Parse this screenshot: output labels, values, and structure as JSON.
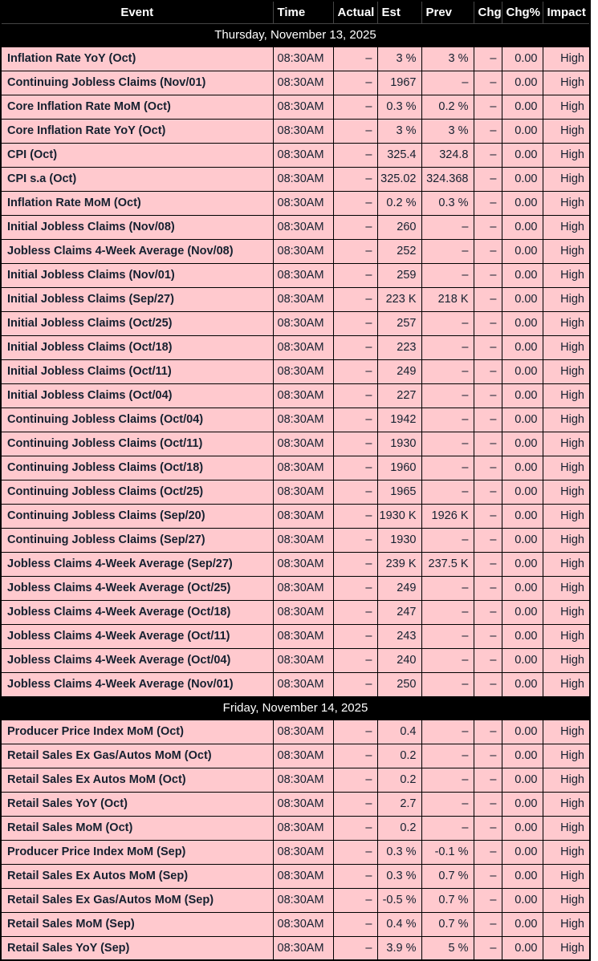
{
  "colors": {
    "header_bg": "#000000",
    "header_text": "#ffffff",
    "section_bg": "#000000",
    "section_text": "#ffffff",
    "row_bg": "#ffc9ce",
    "row_text": "#15202f",
    "border": "#000000"
  },
  "table": {
    "columns": [
      "Event",
      "Time",
      "Actual",
      "Est",
      "Prev",
      "Chg",
      "Chg%",
      "Impact"
    ],
    "sections": [
      {
        "date": "Thursday, November 13, 2025",
        "rows": [
          {
            "event": "Inflation Rate YoY (Oct)",
            "time": "08:30AM",
            "actual": "–",
            "est": "3 %",
            "prev": "3 %",
            "chg": "–",
            "chg_pct": "0.00",
            "impact": "High"
          },
          {
            "event": "Continuing Jobless Claims (Nov/01)",
            "time": "08:30AM",
            "actual": "–",
            "est": "1967",
            "prev": "–",
            "chg": "–",
            "chg_pct": "0.00",
            "impact": "High"
          },
          {
            "event": "Core Inflation Rate MoM (Oct)",
            "time": "08:30AM",
            "actual": "–",
            "est": "0.3 %",
            "prev": "0.2 %",
            "chg": "–",
            "chg_pct": "0.00",
            "impact": "High"
          },
          {
            "event": "Core Inflation Rate YoY (Oct)",
            "time": "08:30AM",
            "actual": "–",
            "est": "3 %",
            "prev": "3 %",
            "chg": "–",
            "chg_pct": "0.00",
            "impact": "High"
          },
          {
            "event": "CPI (Oct)",
            "time": "08:30AM",
            "actual": "–",
            "est": "325.4",
            "prev": "324.8",
            "chg": "–",
            "chg_pct": "0.00",
            "impact": "High"
          },
          {
            "event": "CPI s.a (Oct)",
            "time": "08:30AM",
            "actual": "–",
            "est": "325.02",
            "prev": "324.368",
            "chg": "–",
            "chg_pct": "0.00",
            "impact": "High"
          },
          {
            "event": "Inflation Rate MoM (Oct)",
            "time": "08:30AM",
            "actual": "–",
            "est": "0.2 %",
            "prev": "0.3 %",
            "chg": "–",
            "chg_pct": "0.00",
            "impact": "High"
          },
          {
            "event": "Initial Jobless Claims (Nov/08)",
            "time": "08:30AM",
            "actual": "–",
            "est": "260",
            "prev": "–",
            "chg": "–",
            "chg_pct": "0.00",
            "impact": "High"
          },
          {
            "event": "Jobless Claims 4-Week Average (Nov/08)",
            "time": "08:30AM",
            "actual": "–",
            "est": "252",
            "prev": "–",
            "chg": "–",
            "chg_pct": "0.00",
            "impact": "High"
          },
          {
            "event": "Initial Jobless Claims (Nov/01)",
            "time": "08:30AM",
            "actual": "–",
            "est": "259",
            "prev": "–",
            "chg": "–",
            "chg_pct": "0.00",
            "impact": "High"
          },
          {
            "event": "Initial Jobless Claims (Sep/27)",
            "time": "08:30AM",
            "actual": "–",
            "est": "223 K",
            "prev": "218 K",
            "chg": "–",
            "chg_pct": "0.00",
            "impact": "High"
          },
          {
            "event": "Initial Jobless Claims (Oct/25)",
            "time": "08:30AM",
            "actual": "–",
            "est": "257",
            "prev": "–",
            "chg": "–",
            "chg_pct": "0.00",
            "impact": "High"
          },
          {
            "event": "Initial Jobless Claims (Oct/18)",
            "time": "08:30AM",
            "actual": "–",
            "est": "223",
            "prev": "–",
            "chg": "–",
            "chg_pct": "0.00",
            "impact": "High"
          },
          {
            "event": "Initial Jobless Claims (Oct/11)",
            "time": "08:30AM",
            "actual": "–",
            "est": "249",
            "prev": "–",
            "chg": "–",
            "chg_pct": "0.00",
            "impact": "High"
          },
          {
            "event": "Initial Jobless Claims (Oct/04)",
            "time": "08:30AM",
            "actual": "–",
            "est": "227",
            "prev": "–",
            "chg": "–",
            "chg_pct": "0.00",
            "impact": "High"
          },
          {
            "event": "Continuing Jobless Claims (Oct/04)",
            "time": "08:30AM",
            "actual": "–",
            "est": "1942",
            "prev": "–",
            "chg": "–",
            "chg_pct": "0.00",
            "impact": "High"
          },
          {
            "event": "Continuing Jobless Claims (Oct/11)",
            "time": "08:30AM",
            "actual": "–",
            "est": "1930",
            "prev": "–",
            "chg": "–",
            "chg_pct": "0.00",
            "impact": "High"
          },
          {
            "event": "Continuing Jobless Claims (Oct/18)",
            "time": "08:30AM",
            "actual": "–",
            "est": "1960",
            "prev": "–",
            "chg": "–",
            "chg_pct": "0.00",
            "impact": "High"
          },
          {
            "event": "Continuing Jobless Claims (Oct/25)",
            "time": "08:30AM",
            "actual": "–",
            "est": "1965",
            "prev": "–",
            "chg": "–",
            "chg_pct": "0.00",
            "impact": "High"
          },
          {
            "event": "Continuing Jobless Claims (Sep/20)",
            "time": "08:30AM",
            "actual": "–",
            "est": "1930 K",
            "prev": "1926 K",
            "chg": "–",
            "chg_pct": "0.00",
            "impact": "High"
          },
          {
            "event": "Continuing Jobless Claims (Sep/27)",
            "time": "08:30AM",
            "actual": "–",
            "est": "1930",
            "prev": "–",
            "chg": "–",
            "chg_pct": "0.00",
            "impact": "High"
          },
          {
            "event": "Jobless Claims 4-Week Average (Sep/27)",
            "time": "08:30AM",
            "actual": "–",
            "est": "239 K",
            "prev": "237.5 K",
            "chg": "–",
            "chg_pct": "0.00",
            "impact": "High"
          },
          {
            "event": "Jobless Claims 4-Week Average (Oct/25)",
            "time": "08:30AM",
            "actual": "–",
            "est": "249",
            "prev": "–",
            "chg": "–",
            "chg_pct": "0.00",
            "impact": "High"
          },
          {
            "event": "Jobless Claims 4-Week Average (Oct/18)",
            "time": "08:30AM",
            "actual": "–",
            "est": "247",
            "prev": "–",
            "chg": "–",
            "chg_pct": "0.00",
            "impact": "High"
          },
          {
            "event": "Jobless Claims 4-Week Average (Oct/11)",
            "time": "08:30AM",
            "actual": "–",
            "est": "243",
            "prev": "–",
            "chg": "–",
            "chg_pct": "0.00",
            "impact": "High"
          },
          {
            "event": "Jobless Claims 4-Week Average (Oct/04)",
            "time": "08:30AM",
            "actual": "–",
            "est": "240",
            "prev": "–",
            "chg": "–",
            "chg_pct": "0.00",
            "impact": "High"
          },
          {
            "event": "Jobless Claims 4-Week Average (Nov/01)",
            "time": "08:30AM",
            "actual": "–",
            "est": "250",
            "prev": "–",
            "chg": "–",
            "chg_pct": "0.00",
            "impact": "High"
          }
        ]
      },
      {
        "date": "Friday, November 14, 2025",
        "rows": [
          {
            "event": "Producer Price Index MoM (Oct)",
            "time": "08:30AM",
            "actual": "–",
            "est": "0.4",
            "prev": "–",
            "chg": "–",
            "chg_pct": "0.00",
            "impact": "High"
          },
          {
            "event": "Retail Sales Ex Gas/Autos MoM (Oct)",
            "time": "08:30AM",
            "actual": "–",
            "est": "0.2",
            "prev": "–",
            "chg": "–",
            "chg_pct": "0.00",
            "impact": "High"
          },
          {
            "event": "Retail Sales Ex Autos MoM (Oct)",
            "time": "08:30AM",
            "actual": "–",
            "est": "0.2",
            "prev": "–",
            "chg": "–",
            "chg_pct": "0.00",
            "impact": "High"
          },
          {
            "event": "Retail Sales YoY (Oct)",
            "time": "08:30AM",
            "actual": "–",
            "est": "2.7",
            "prev": "–",
            "chg": "–",
            "chg_pct": "0.00",
            "impact": "High"
          },
          {
            "event": "Retail Sales MoM (Oct)",
            "time": "08:30AM",
            "actual": "–",
            "est": "0.2",
            "prev": "–",
            "chg": "–",
            "chg_pct": "0.00",
            "impact": "High"
          },
          {
            "event": "Producer Price Index MoM (Sep)",
            "time": "08:30AM",
            "actual": "–",
            "est": "0.3 %",
            "prev": "-0.1 %",
            "chg": "–",
            "chg_pct": "0.00",
            "impact": "High"
          },
          {
            "event": "Retail Sales Ex Autos MoM (Sep)",
            "time": "08:30AM",
            "actual": "–",
            "est": "0.3 %",
            "prev": "0.7 %",
            "chg": "–",
            "chg_pct": "0.00",
            "impact": "High"
          },
          {
            "event": "Retail Sales Ex Gas/Autos MoM (Sep)",
            "time": "08:30AM",
            "actual": "–",
            "est": "-0.5 %",
            "prev": "0.7 %",
            "chg": "–",
            "chg_pct": "0.00",
            "impact": "High"
          },
          {
            "event": "Retail Sales MoM (Sep)",
            "time": "08:30AM",
            "actual": "–",
            "est": "0.4 %",
            "prev": "0.7 %",
            "chg": "–",
            "chg_pct": "0.00",
            "impact": "High"
          },
          {
            "event": "Retail Sales YoY (Sep)",
            "time": "08:30AM",
            "actual": "–",
            "est": "3.9 %",
            "prev": "5 %",
            "chg": "–",
            "chg_pct": "0.00",
            "impact": "High"
          }
        ]
      }
    ]
  }
}
